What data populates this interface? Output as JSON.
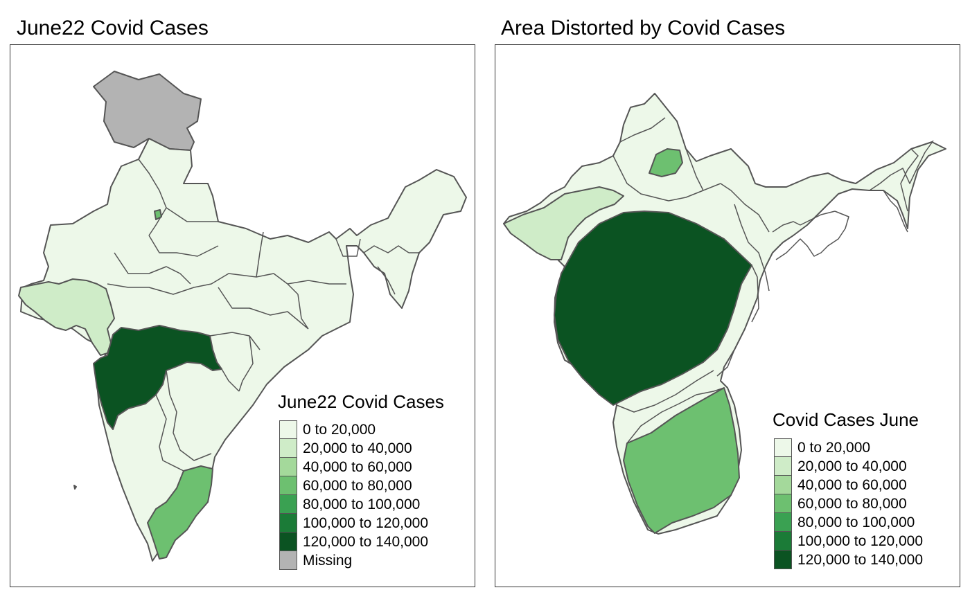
{
  "left_panel": {
    "title": "June22 Covid Cases",
    "legend": {
      "title": "June22 Covid Cases",
      "items": [
        {
          "label": "0 to 20,000",
          "color": "#edf8e9"
        },
        {
          "label": "20,000 to 40,000",
          "color": "#cfecc8"
        },
        {
          "label": "40,000 to 60,000",
          "color": "#a4d99b"
        },
        {
          "label": "60,000 to 80,000",
          "color": "#6dc070"
        },
        {
          "label": "80,000 to 100,000",
          "color": "#3aa152"
        },
        {
          "label": "100,000 to 120,000",
          "color": "#1b7b37"
        },
        {
          "label": "120,000 to 140,000",
          "color": "#0b5322"
        },
        {
          "label": "Missing",
          "color": "#b3b3b3"
        }
      ]
    }
  },
  "right_panel": {
    "title": "Area Distorted by Covid Cases",
    "legend": {
      "title": "Covid Cases June",
      "items": [
        {
          "label": "0 to 20,000",
          "color": "#edf8e9"
        },
        {
          "label": "20,000 to 40,000",
          "color": "#cfecc8"
        },
        {
          "label": "40,000 to 60,000",
          "color": "#a4d99b"
        },
        {
          "label": "60,000 to 80,000",
          "color": "#6dc070"
        },
        {
          "label": "80,000 to 100,000",
          "color": "#3aa152"
        },
        {
          "label": "100,000 to 120,000",
          "color": "#1b7b37"
        },
        {
          "label": "120,000 to 140,000",
          "color": "#0b5322"
        }
      ]
    }
  },
  "regions": {
    "default_color": "#edf8e9",
    "gujarat_color": "#cfecc8",
    "maharashtra_color": "#0b5322",
    "tamil_nadu_color": "#6dc070",
    "delhi_color": "#6dc070",
    "jammu_kashmir_color": "#b3b3b3"
  }
}
